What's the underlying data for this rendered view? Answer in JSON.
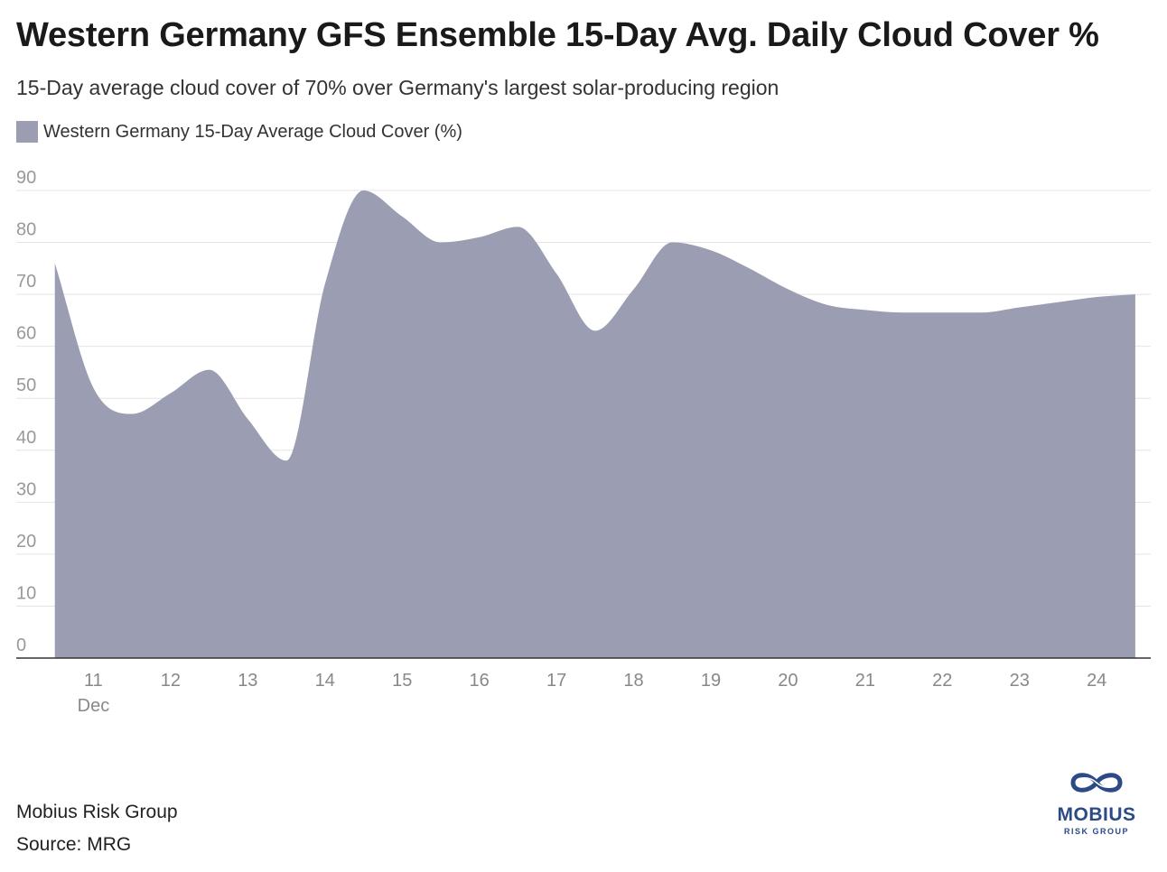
{
  "chart_data": {
    "type": "area",
    "title": "Western Germany GFS Ensemble 15-Day Avg. Daily Cloud Cover %",
    "subtitle": "15-Day average cloud cover of 70% over Germany's largest solar-producing region",
    "x": [
      10.5,
      11.0,
      11.5,
      12.0,
      12.5,
      13.0,
      13.5,
      14.0,
      14.5,
      15.0,
      15.5,
      16.0,
      16.5,
      17.0,
      17.5,
      18.0,
      18.5,
      19.0,
      19.5,
      20.0,
      20.5,
      21.0,
      21.5,
      22.0,
      22.5,
      23.0,
      23.5,
      24.0,
      24.5
    ],
    "series": [
      {
        "name": "Western Germany 15-Day Average Cloud Cover (%)",
        "values": [
          76,
          52,
          47,
          51,
          55.5,
          46,
          38,
          72,
          90,
          85,
          80,
          81,
          83,
          74,
          63,
          71,
          80,
          78.5,
          75,
          71,
          68,
          67,
          66.5,
          66.5,
          66.5,
          67.5,
          68.5,
          69.5,
          70
        ]
      }
    ],
    "xticks": [
      "11",
      "12",
      "13",
      "14",
      "15",
      "16",
      "17",
      "18",
      "19",
      "20",
      "21",
      "22",
      "23",
      "24"
    ],
    "xtick_values": [
      11,
      12,
      13,
      14,
      15,
      16,
      17,
      18,
      19,
      20,
      21,
      22,
      23,
      24
    ],
    "x_sublabel": "Dec",
    "yticks": [
      0,
      10,
      20,
      30,
      40,
      50,
      60,
      70,
      80,
      90
    ],
    "ylim": [
      0,
      90
    ],
    "xlim": [
      10,
      24.7
    ],
    "grid": true,
    "legend": "top-left",
    "fill_color": "#9b9eb2",
    "grid_color": "#e4e4e4",
    "axis_color": "#333333",
    "tick_color": "#999999"
  },
  "footer": {
    "organization": "Mobius Risk Group",
    "source": "Source: MRG"
  },
  "logo": {
    "name": "MOBIUS",
    "tagline": "RISK GROUP",
    "color": "#2b4a86"
  }
}
